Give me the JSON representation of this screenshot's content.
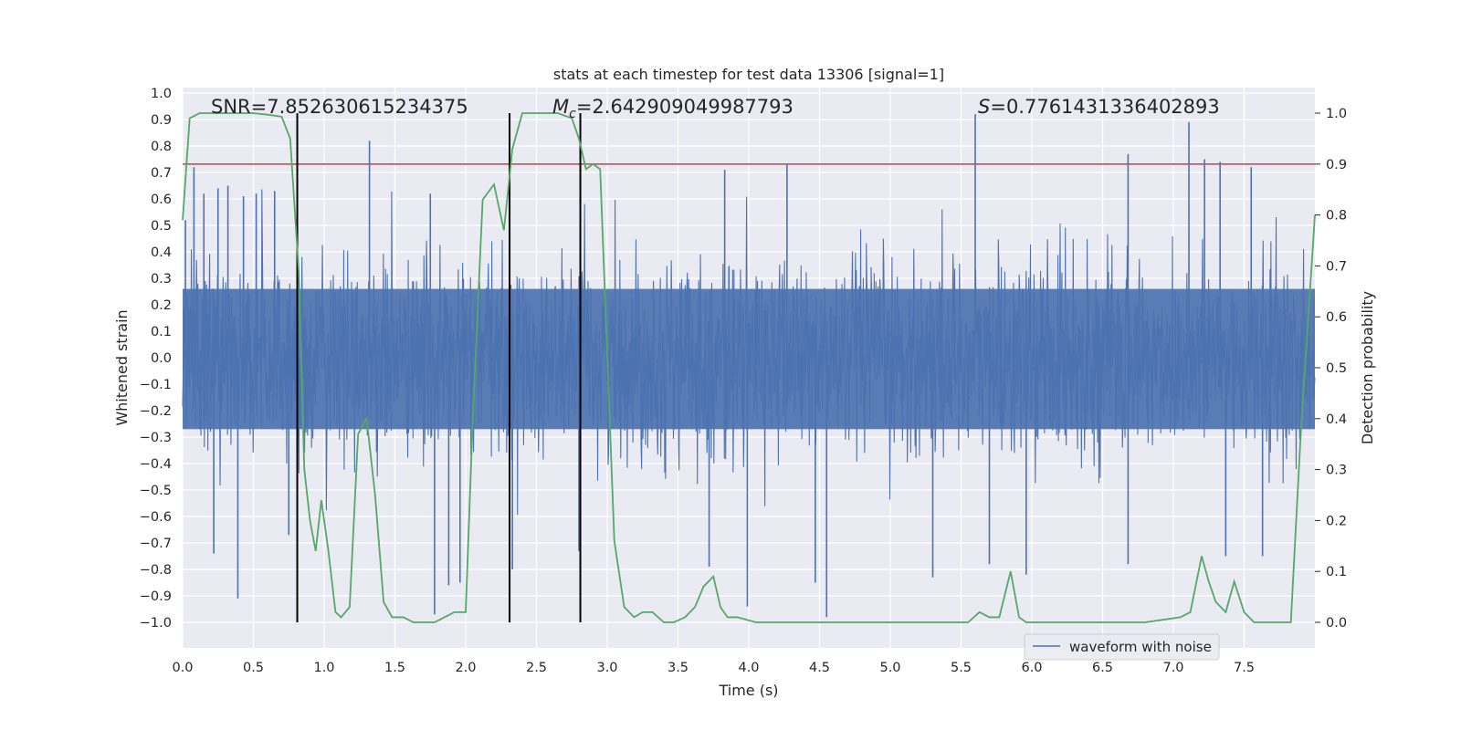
{
  "chart_data": {
    "type": "line",
    "title": "stats at each timestep for test data 13306 [signal=1]",
    "xlabel": "Time (s)",
    "ylabel_left": "Whitened strain",
    "ylabel_right": "Detection probability",
    "xlim": [
      0.0,
      8.0
    ],
    "ylim_left": [
      -1.0,
      1.0
    ],
    "ylim_right": [
      0.0,
      1.0
    ],
    "x_ticks": [
      "0.0",
      "0.5",
      "1.0",
      "1.5",
      "2.0",
      "2.5",
      "3.0",
      "3.5",
      "4.0",
      "4.5",
      "5.0",
      "5.5",
      "6.0",
      "6.5",
      "7.0",
      "7.5"
    ],
    "y_ticks_left": [
      "1.0",
      "0.9",
      "0.8",
      "0.7",
      "0.6",
      "0.5",
      "0.4",
      "0.3",
      "0.2",
      "0.1",
      "0.0",
      "−0.1",
      "−0.2",
      "−0.3",
      "−0.4",
      "−0.5",
      "−0.6",
      "−0.7",
      "−0.8",
      "−0.9",
      "−1.0"
    ],
    "y_ticks_right": [
      "1.0",
      "0.9",
      "0.8",
      "0.7",
      "0.6",
      "0.5",
      "0.4",
      "0.3",
      "0.2",
      "0.1",
      "0.0"
    ],
    "annotations": {
      "snr": "SNR=7.852630615234375",
      "mc": "=2.642909049987793",
      "mc_symbol": "M",
      "mc_sub": "c",
      "s": "=0.7761431336402893",
      "s_symbol": "S"
    },
    "legend": {
      "position": "bottom-right",
      "label": "waveform with noise"
    },
    "grid": true,
    "threshold": {
      "y_right": 0.9,
      "color": "#c44e52"
    },
    "event_lines_x": [
      0.81,
      2.31,
      2.81
    ],
    "waveform": {
      "name": "waveform with noise",
      "color": "#4c72b0",
      "samples": 16384,
      "envelope_p95": 0.35,
      "spikes": [
        {
          "x": 0.02,
          "y": 0.52
        },
        {
          "x": 0.08,
          "y": 0.72
        },
        {
          "x": 0.15,
          "y": 0.62
        },
        {
          "x": 0.25,
          "y": 0.64
        },
        {
          "x": 0.32,
          "y": 0.65
        },
        {
          "x": 0.43,
          "y": 0.61
        },
        {
          "x": 0.52,
          "y": 0.62
        },
        {
          "x": 0.65,
          "y": 0.63
        },
        {
          "x": 1.32,
          "y": 0.82
        },
        {
          "x": 1.75,
          "y": 0.62
        },
        {
          "x": 3.83,
          "y": 0.71
        },
        {
          "x": 4.27,
          "y": 0.73
        },
        {
          "x": 5.6,
          "y": 0.92
        },
        {
          "x": 6.68,
          "y": 0.77
        },
        {
          "x": 7.11,
          "y": 0.89
        },
        {
          "x": 7.22,
          "y": 0.75
        },
        {
          "x": 7.33,
          "y": 0.74
        },
        {
          "x": 7.55,
          "y": 0.72
        },
        {
          "x": 0.39,
          "y": -0.91
        },
        {
          "x": 0.22,
          "y": -0.74
        },
        {
          "x": 0.75,
          "y": -0.67
        },
        {
          "x": 1.78,
          "y": -0.97
        },
        {
          "x": 1.88,
          "y": -0.86
        },
        {
          "x": 1.96,
          "y": -0.85
        },
        {
          "x": 2.33,
          "y": -0.8
        },
        {
          "x": 2.8,
          "y": -0.73
        },
        {
          "x": 3.72,
          "y": -0.79
        },
        {
          "x": 3.99,
          "y": -0.94
        },
        {
          "x": 4.55,
          "y": -0.98
        },
        {
          "x": 4.47,
          "y": -0.85
        },
        {
          "x": 5.3,
          "y": -0.83
        },
        {
          "x": 5.7,
          "y": -0.78
        },
        {
          "x": 5.96,
          "y": -0.82
        },
        {
          "x": 6.68,
          "y": -0.78
        },
        {
          "x": 7.37,
          "y": -0.75
        },
        {
          "x": 7.63,
          "y": -0.75
        }
      ]
    },
    "series": [
      {
        "name": "Detection probability",
        "color": "#55a868",
        "x": [
          0.0,
          0.05,
          0.12,
          0.2,
          0.3,
          0.5,
          0.6,
          0.7,
          0.76,
          0.82,
          0.86,
          0.9,
          0.94,
          0.98,
          1.03,
          1.08,
          1.12,
          1.18,
          1.24,
          1.3,
          1.36,
          1.42,
          1.48,
          1.56,
          1.63,
          1.7,
          1.78,
          1.85,
          1.92,
          2.0,
          2.05,
          2.12,
          2.2,
          2.27,
          2.33,
          2.4,
          2.45,
          2.55,
          2.65,
          2.75,
          2.8,
          2.85,
          2.9,
          2.95,
          3.05,
          3.12,
          3.19,
          3.25,
          3.32,
          3.4,
          3.47,
          3.55,
          3.62,
          3.68,
          3.75,
          3.8,
          3.85,
          3.92,
          4.05,
          4.2,
          4.3,
          4.5,
          4.8,
          5.0,
          5.2,
          5.45,
          5.55,
          5.63,
          5.7,
          5.77,
          5.85,
          5.91,
          5.96,
          6.05,
          6.2,
          6.3,
          6.5,
          6.8,
          7.05,
          7.12,
          7.2,
          7.25,
          7.3,
          7.37,
          7.43,
          7.5,
          7.57,
          7.63,
          7.75,
          7.83,
          7.9,
          8.0
        ],
        "values": [
          0.79,
          0.99,
          1.0,
          1.0,
          1.0,
          1.0,
          0.997,
          0.993,
          0.95,
          0.69,
          0.3,
          0.2,
          0.14,
          0.24,
          0.14,
          0.02,
          0.01,
          0.03,
          0.37,
          0.4,
          0.25,
          0.04,
          0.01,
          0.01,
          0.0,
          0.0,
          0.0,
          0.01,
          0.02,
          0.02,
          0.4,
          0.83,
          0.86,
          0.77,
          0.93,
          1.0,
          1.0,
          1.0,
          1.0,
          0.99,
          0.95,
          0.89,
          0.9,
          0.89,
          0.16,
          0.03,
          0.01,
          0.02,
          0.02,
          0.0,
          0.0,
          0.01,
          0.03,
          0.07,
          0.09,
          0.03,
          0.01,
          0.01,
          0.0,
          0.0,
          0.0,
          0.0,
          0.0,
          0.0,
          0.0,
          0.0,
          0.0,
          0.02,
          0.01,
          0.01,
          0.1,
          0.01,
          0.0,
          0.0,
          0.0,
          0.0,
          0.0,
          0.0,
          0.01,
          0.02,
          0.13,
          0.08,
          0.04,
          0.02,
          0.08,
          0.02,
          0.0,
          0.0,
          0.0,
          0.0,
          0.37,
          0.8
        ]
      }
    ]
  }
}
